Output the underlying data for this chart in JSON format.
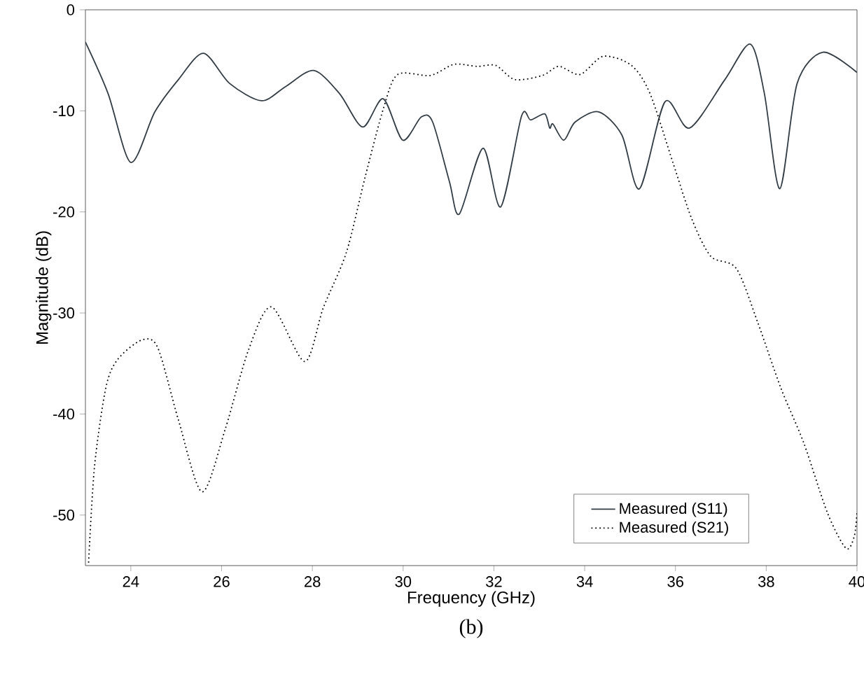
{
  "chart_data": {
    "type": "line",
    "xlabel": "Frequency (GHz)",
    "ylabel": "Magnitude (dB)",
    "annotations": [
      "(b)"
    ],
    "xlim": [
      23,
      40
    ],
    "ylim": [
      -55,
      0
    ],
    "xticks": [
      24,
      26,
      28,
      30,
      32,
      34,
      36,
      38,
      40
    ],
    "yticks": [
      -50,
      -40,
      -30,
      -20,
      -10,
      0
    ],
    "legend": "bottom right",
    "grid": false,
    "marker": "none",
    "series": [
      {
        "name": "Measured (S11)",
        "color": "#333d45",
        "line_style": "solid",
        "x": [
          23.0,
          23.5,
          24.0,
          24.53,
          25.05,
          25.6,
          26.18,
          26.88,
          27.41,
          28.03,
          28.6,
          29.11,
          29.56,
          29.99,
          30.4,
          30.65,
          31.02,
          31.24,
          31.76,
          32.15,
          32.61,
          32.81,
          33.12,
          33.23,
          33.3,
          33.54,
          33.79,
          34.31,
          34.82,
          35.21,
          35.77,
          36.31,
          37.09,
          37.65,
          37.96,
          38.3,
          38.68,
          39.25,
          40.0
        ],
        "values": [
          -3.2,
          -8.3,
          -15.1,
          -10.1,
          -6.9,
          -4.3,
          -7.3,
          -9.0,
          -7.6,
          -6.0,
          -8.3,
          -11.6,
          -8.8,
          -12.9,
          -10.6,
          -11.1,
          -17.0,
          -20.2,
          -13.7,
          -19.5,
          -10.5,
          -10.9,
          -10.3,
          -11.7,
          -11.3,
          -12.9,
          -11.1,
          -10.1,
          -12.4,
          -17.7,
          -9.1,
          -11.7,
          -6.9,
          -3.4,
          -8.3,
          -17.7,
          -7.3,
          -4.2,
          -6.2
        ]
      },
      {
        "name": "Measured (S21)",
        "color": "#000000",
        "line_style": "dotted",
        "x": [
          23.07,
          23.2,
          23.45,
          23.71,
          24.23,
          24.59,
          25.05,
          25.57,
          26.08,
          26.59,
          27.1,
          27.83,
          28.24,
          28.75,
          29.16,
          29.57,
          29.88,
          30.6,
          31.12,
          31.63,
          32.04,
          32.46,
          33.07,
          33.43,
          33.9,
          34.41,
          35.03,
          35.44,
          35.95,
          36.36,
          36.78,
          37.34,
          37.81,
          38.32,
          38.83,
          39.35,
          39.76,
          39.94,
          40.0
        ],
        "values": [
          -54.7,
          -45.2,
          -37.4,
          -34.6,
          -32.7,
          -33.4,
          -40.6,
          -47.7,
          -41.5,
          -33.7,
          -29.4,
          -34.8,
          -29.5,
          -24.0,
          -16.6,
          -9.7,
          -6.4,
          -6.5,
          -5.4,
          -5.6,
          -5.5,
          -6.9,
          -6.5,
          -5.6,
          -6.4,
          -4.6,
          -5.5,
          -8.3,
          -15.2,
          -20.7,
          -24.4,
          -25.6,
          -30.9,
          -37.4,
          -42.9,
          -49.8,
          -53.3,
          -52.1,
          -49.8
        ]
      }
    ]
  }
}
